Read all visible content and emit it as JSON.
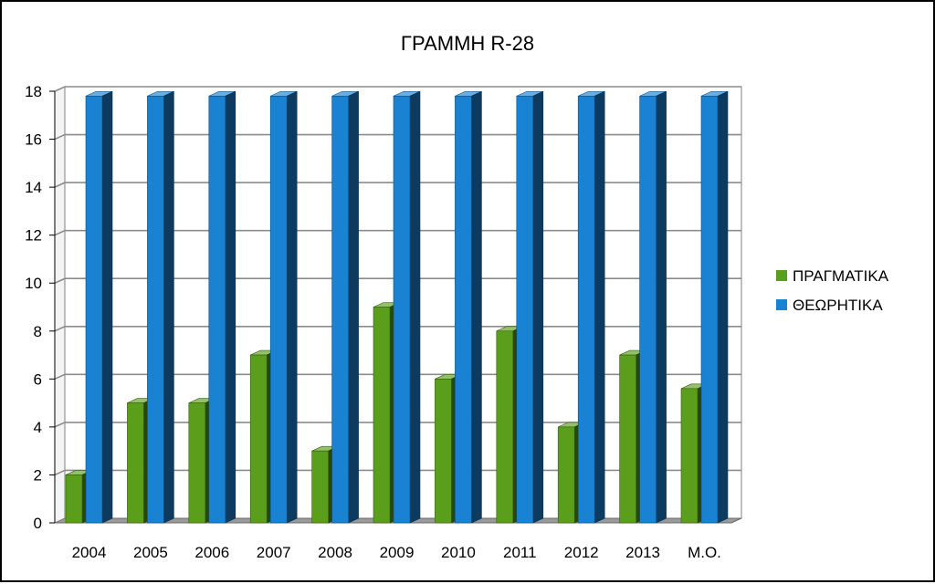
{
  "chart_data": {
    "type": "bar",
    "title": "ΓΡΑΜΜΗ R-28",
    "xlabel": "",
    "ylabel": "",
    "categories": [
      "2004",
      "2005",
      "2006",
      "2007",
      "2008",
      "2009",
      "2010",
      "2011",
      "2012",
      "2013",
      "Μ.Ο."
    ],
    "series": [
      {
        "name": "ΠΡΑΓΜΑΤΙΚΑ",
        "color": "#5a9e1c",
        "values": [
          2,
          5,
          5,
          7,
          3,
          9,
          6,
          8,
          4,
          7,
          5.6
        ]
      },
      {
        "name": "ΘΕΩΡΗΤΙΚΑ",
        "color": "#1a82d2",
        "values": [
          17.8,
          17.8,
          17.8,
          17.8,
          17.8,
          17.8,
          17.8,
          17.8,
          17.8,
          17.8,
          17.8
        ]
      }
    ],
    "ylim": [
      0,
      18
    ],
    "yticks": [
      0,
      2,
      4,
      6,
      8,
      10,
      12,
      14,
      16,
      18
    ],
    "grid": true,
    "legend_position": "right",
    "style": "3d-column"
  }
}
